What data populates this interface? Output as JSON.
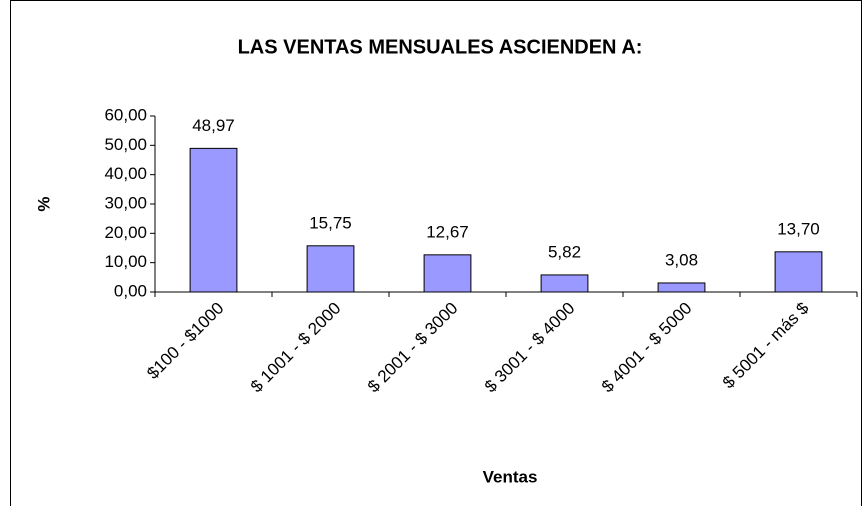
{
  "chart_data": {
    "type": "bar",
    "title": "LAS VENTAS MENSUALES ASCIENDEN A:",
    "x_label": "Ventas",
    "y_label": "%",
    "categories": [
      "$100 - $1000",
      "$ 1001 - $ 2000",
      "$ 2001 - $ 3000",
      "$ 3001 - $ 4000",
      "$ 4001 - $ 5000",
      "$ 5001 - más $"
    ],
    "values": [
      48.97,
      15.75,
      12.67,
      5.82,
      3.08,
      13.7
    ],
    "value_labels": [
      "48,97",
      "15,75",
      "12,67",
      "5,82",
      "3,08",
      "13,70"
    ],
    "color": "#9999ff",
    "ylim": [
      0,
      60
    ],
    "yticks": [
      {
        "value": 0,
        "label": "0,00"
      },
      {
        "value": 10,
        "label": "10,00"
      },
      {
        "value": 20,
        "label": "20,00"
      },
      {
        "value": 30,
        "label": "30,00"
      },
      {
        "value": 40,
        "label": "40,00"
      },
      {
        "value": 50,
        "label": "50,00"
      },
      {
        "value": 60,
        "label": "60,00"
      }
    ],
    "grid": false
  }
}
